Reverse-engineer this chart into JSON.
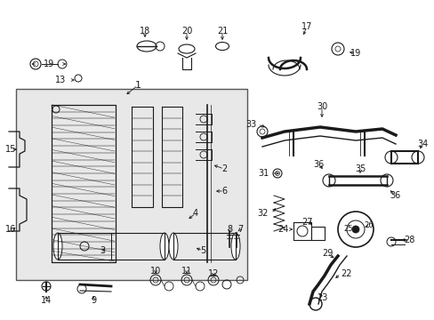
{
  "bg_color": "#ffffff",
  "box_bg": "#e8e8e8",
  "lc": "#1a1a1a",
  "figsize": [
    4.89,
    3.6
  ],
  "dpi": 100
}
